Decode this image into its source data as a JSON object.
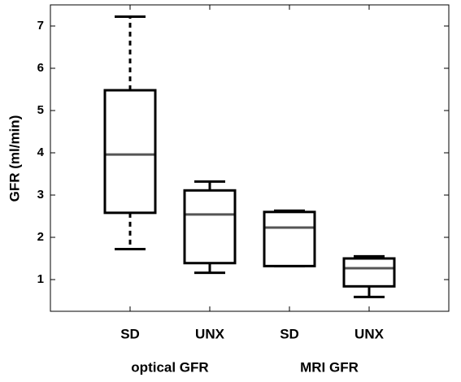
{
  "chart_data": {
    "type": "box",
    "title": "",
    "ylabel": "GFR (ml/min)",
    "xlabel": "",
    "ylim": [
      0.25,
      7.5
    ],
    "yticks": [
      1,
      2,
      3,
      4,
      5,
      6,
      7
    ],
    "categories": [
      "SD",
      "UNX",
      "SD",
      "UNX"
    ],
    "groups": [
      {
        "label": "optical GFR",
        "categories": [
          0,
          1
        ]
      },
      {
        "label": "MRI GFR",
        "categories": [
          2,
          3
        ]
      }
    ],
    "boxes": [
      {
        "category": "SD",
        "group": "optical GFR",
        "whisker_low": 1.72,
        "q1": 2.58,
        "median": 3.96,
        "q3": 5.48,
        "whisker_high": 7.22,
        "whisker_style": "dashed"
      },
      {
        "category": "UNX",
        "group": "optical GFR",
        "whisker_low": 1.16,
        "q1": 1.39,
        "median": 2.54,
        "q3": 3.11,
        "whisker_high": 3.32,
        "whisker_style": "solid"
      },
      {
        "category": "SD",
        "group": "MRI GFR",
        "whisker_low": 1.32,
        "q1": 1.32,
        "median": 2.23,
        "q3": 2.6,
        "whisker_high": 2.63,
        "whisker_style": "solid"
      },
      {
        "category": "UNX",
        "group": "MRI GFR",
        "whisker_low": 0.59,
        "q1": 0.84,
        "median": 1.27,
        "q3": 1.5,
        "whisker_high": 1.55,
        "whisker_style": "solid"
      }
    ],
    "colors": {
      "box": "#000000",
      "median": "#555555",
      "frame": "#000000"
    },
    "grid": false,
    "legend": "none"
  }
}
